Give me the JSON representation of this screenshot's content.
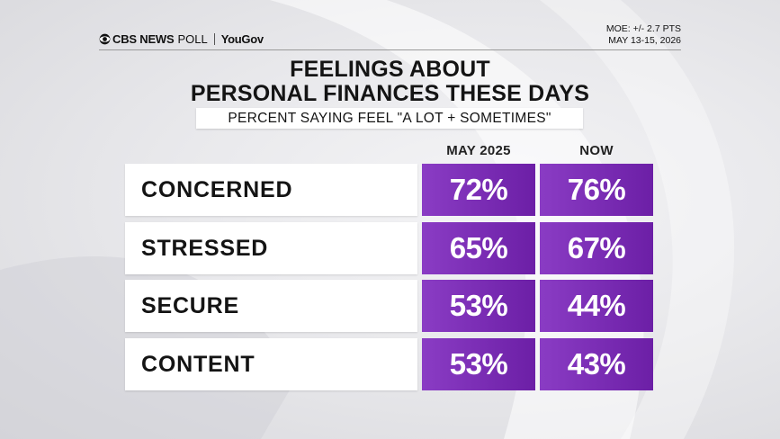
{
  "brand": {
    "network": "CBS NEWS",
    "poll": "POLL",
    "partner": "YouGov",
    "icon": "cbs-eye-icon"
  },
  "meta": {
    "moe": "MOE: +/- 2.7 PTS",
    "dates": "MAY 13-15, 2026"
  },
  "chart_data": {
    "type": "table",
    "title_line1": "FEELINGS ABOUT",
    "title_line2": "PERSONAL FINANCES THESE DAYS",
    "subtitle": "PERCENT SAYING FEEL \"A LOT + SOMETIMES\"",
    "columns": [
      "MAY 2025",
      "NOW"
    ],
    "rows": [
      {
        "label": "CONCERNED",
        "values": [
          "72%",
          "76%"
        ]
      },
      {
        "label": "STRESSED",
        "values": [
          "65%",
          "67%"
        ]
      },
      {
        "label": "SECURE",
        "values": [
          "53%",
          "44%"
        ]
      },
      {
        "label": "CONTENT",
        "values": [
          "53%",
          "43%"
        ]
      }
    ],
    "series": [
      {
        "name": "MAY 2025",
        "values": [
          72,
          65,
          53,
          53
        ]
      },
      {
        "name": "NOW",
        "values": [
          76,
          67,
          44,
          43
        ]
      }
    ],
    "accent": "#7a2db8"
  }
}
